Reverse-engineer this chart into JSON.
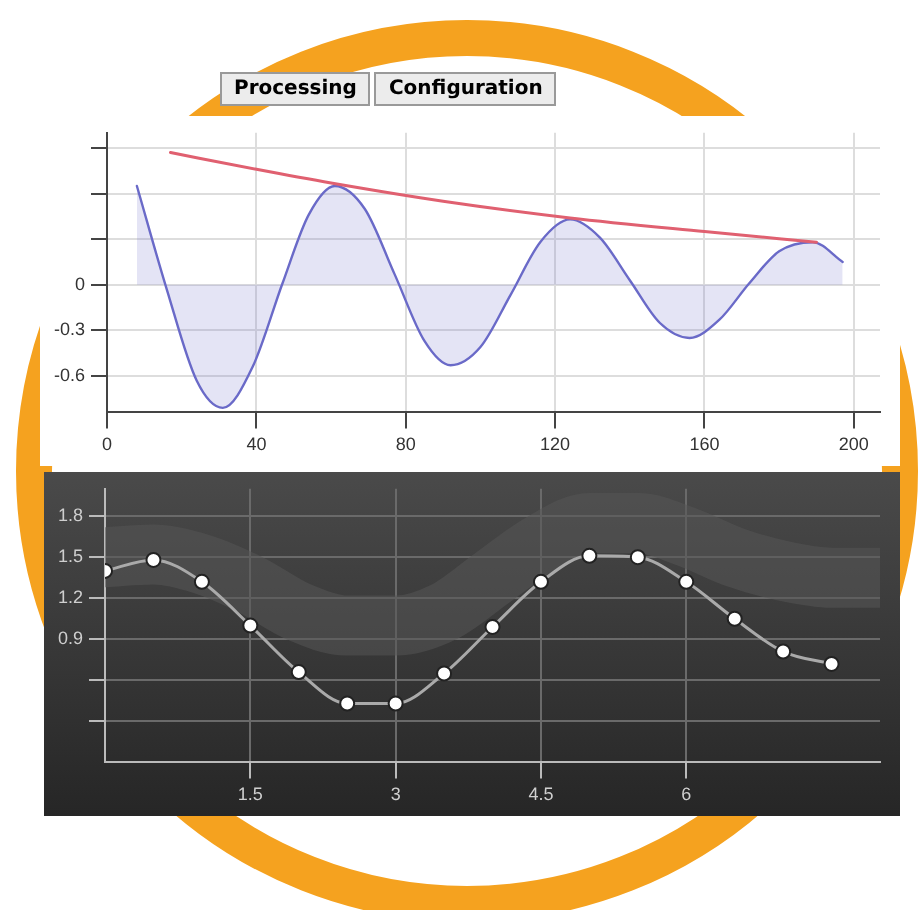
{
  "chart_data": [
    {
      "type": "area",
      "annotations": [
        "Processing",
        "Configuration"
      ],
      "xlim": [
        0,
        207
      ],
      "ylim": [
        -0.84,
        1.0
      ],
      "xticks": [
        0,
        40,
        80,
        120,
        160,
        200
      ],
      "yticks": [
        -0.6,
        -0.3,
        0,
        {
          "value": 0.3,
          "label": null
        },
        {
          "value": 0.6,
          "label": null
        },
        {
          "value": 0.9,
          "label": null
        }
      ],
      "grid": true,
      "series": [
        {
          "color": "#6a6ac8",
          "x": [
            8,
            16,
            24,
            31,
            39,
            47,
            54,
            61,
            69,
            77,
            85,
            92,
            100,
            108,
            116,
            124,
            132,
            140,
            148,
            156,
            164,
            172,
            180,
            189,
            197
          ],
          "values": [
            0.65,
            -0.03,
            -0.63,
            -0.81,
            -0.54,
            0.01,
            0.46,
            0.65,
            0.5,
            0.07,
            -0.37,
            -0.53,
            -0.41,
            -0.07,
            0.28,
            0.43,
            0.31,
            0.03,
            -0.25,
            -0.35,
            -0.23,
            0.01,
            0.22,
            0.28,
            0.15
          ]
        },
        {
          "type": "line",
          "color": "#e06070",
          "x": [
            17,
            40,
            60,
            90,
            124,
            160,
            190
          ],
          "values": [
            0.87,
            0.76,
            0.67,
            0.55,
            0.44,
            0.35,
            0.28
          ]
        }
      ]
    },
    {
      "type": "line",
      "xlim": [
        0,
        8
      ],
      "ylim": [
        0,
        2
      ],
      "xticks": [
        1.5,
        3,
        4.5,
        6
      ],
      "yticks": [
        {
          "value": 0.3,
          "label": null
        },
        {
          "value": 0.6,
          "label": null
        },
        0.9,
        1.2,
        1.5,
        1.8
      ],
      "grid": true,
      "series": [
        {
          "color": "#555555",
          "marker": "none",
          "x": [
            0,
            0.5,
            1,
            1.5,
            2,
            2.5,
            3,
            3.5,
            4,
            4.5,
            5,
            5.5,
            6,
            6.5,
            7,
            7.5,
            8
          ],
          "values": [
            1.5,
            1.52,
            1.45,
            1.3,
            1.1,
            1.0,
            1.0,
            1.1,
            1.35,
            1.6,
            1.75,
            1.75,
            1.65,
            1.5,
            1.4,
            1.35,
            1.35
          ]
        },
        {
          "color": "#aaaaaa",
          "marker": "circle",
          "x": [
            0,
            0.5,
            1,
            1.5,
            2,
            2.5,
            3,
            3.5,
            4,
            4.5,
            5,
            5.5,
            6,
            6.5,
            7,
            7.5
          ],
          "values": [
            1.4,
            1.48,
            1.32,
            1.0,
            0.66,
            0.43,
            0.43,
            0.65,
            0.99,
            1.32,
            1.51,
            1.5,
            1.32,
            1.05,
            0.81,
            0.72
          ]
        }
      ]
    }
  ]
}
